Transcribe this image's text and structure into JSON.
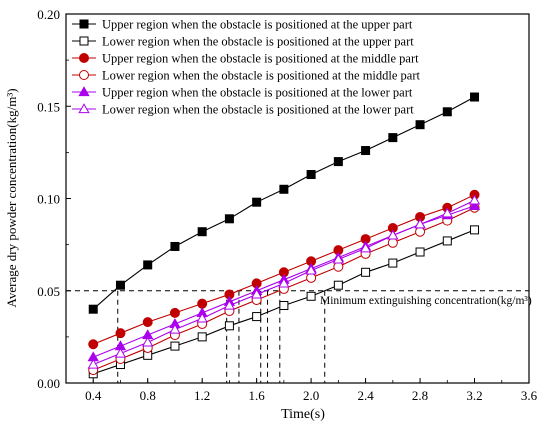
{
  "chart_data": {
    "type": "line",
    "xlabel": "Time(s)",
    "ylabel": "Average dry powder concentration(kg/m³)",
    "xlim": [
      0.2,
      3.6
    ],
    "ylim": [
      0.0,
      0.2
    ],
    "xticks": [
      "0.4",
      "0.8",
      "1.2",
      "1.6",
      "2.0",
      "2.4",
      "2.8",
      "3.2",
      "3.6"
    ],
    "yticks": [
      "0.00",
      "0.05",
      "0.10",
      "0.15",
      "0.20"
    ],
    "grid": false,
    "legend_position": "top-left",
    "x": [
      0.4,
      0.6,
      0.8,
      1.0,
      1.2,
      1.4,
      1.6,
      1.8,
      2.0,
      2.2,
      2.4,
      2.6,
      2.8,
      3.0,
      3.2
    ],
    "series": [
      {
        "name": "Upper region when the obstacle is positioned at the upper part",
        "color": "#000000",
        "marker": "square",
        "filled": true,
        "values": [
          0.04,
          0.053,
          0.064,
          0.074,
          0.082,
          0.089,
          0.098,
          0.105,
          0.113,
          0.12,
          0.126,
          0.133,
          0.14,
          0.147,
          0.155
        ]
      },
      {
        "name": "Lower region when the obstacle is positioned at the upper part",
        "color": "#000000",
        "marker": "square",
        "filled": false,
        "values": [
          0.005,
          0.01,
          0.015,
          0.02,
          0.025,
          0.031,
          0.036,
          0.042,
          0.047,
          0.053,
          0.06,
          0.065,
          0.071,
          0.077,
          0.083
        ]
      },
      {
        "name": "Upper region when the obstacle is positioned at the middle part",
        "color": "#c00000",
        "marker": "circle",
        "filled": true,
        "values": [
          0.021,
          0.027,
          0.033,
          0.038,
          0.043,
          0.048,
          0.054,
          0.06,
          0.066,
          0.072,
          0.078,
          0.084,
          0.09,
          0.095,
          0.102
        ]
      },
      {
        "name": "Lower region when the obstacle is positioned at the middle part",
        "color": "#c00000",
        "marker": "circle",
        "filled": false,
        "values": [
          0.007,
          0.013,
          0.019,
          0.026,
          0.032,
          0.039,
          0.045,
          0.051,
          0.057,
          0.063,
          0.07,
          0.076,
          0.082,
          0.088,
          0.095
        ]
      },
      {
        "name": "Upper region when the obstacle is positioned at the lower part",
        "color": "#aa00ee",
        "marker": "triangle",
        "filled": true,
        "values": [
          0.014,
          0.02,
          0.026,
          0.032,
          0.038,
          0.044,
          0.05,
          0.056,
          0.062,
          0.068,
          0.074,
          0.08,
          0.086,
          0.091,
          0.096
        ]
      },
      {
        "name": "Lower region when the obstacle is positioned at the lower part",
        "color": "#aa00ee",
        "marker": "triangle",
        "filled": false,
        "values": [
          0.01,
          0.016,
          0.022,
          0.029,
          0.035,
          0.042,
          0.048,
          0.054,
          0.061,
          0.067,
          0.073,
          0.08,
          0.086,
          0.092,
          0.099
        ]
      }
    ],
    "threshold": {
      "value": 0.05,
      "label": "Minimum extinguishing concentration(kg/m³)",
      "crossing_times": [
        0.58,
        1.38,
        1.47,
        1.63,
        1.68,
        1.77,
        2.1
      ]
    }
  }
}
